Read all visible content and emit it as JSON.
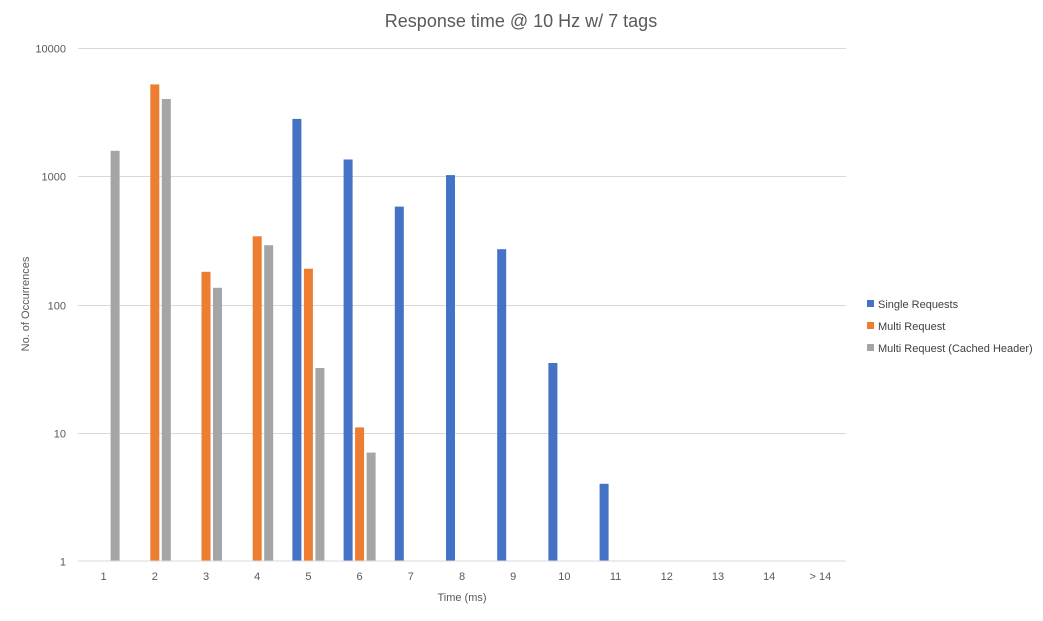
{
  "chart_data": {
    "type": "bar",
    "title": "Response time @ 10 Hz w/ 7 tags",
    "xlabel": "Time (ms)",
    "ylabel": "No. of Occurrences",
    "yscale": "log",
    "ylim": [
      1,
      10000
    ],
    "yticks": [
      "1",
      "10",
      "100",
      "1000",
      "10000"
    ],
    "categories": [
      "1",
      "2",
      "3",
      "4",
      "5",
      "6",
      "7",
      "8",
      "9",
      "10",
      "11",
      "12",
      "13",
      "14",
      "> 14"
    ],
    "grid": true,
    "legend_position": "right",
    "series": [
      {
        "name": "Single Requests",
        "color": "#4472C4",
        "values": [
          null,
          null,
          null,
          null,
          2800,
          1350,
          580,
          1020,
          270,
          35,
          4,
          null,
          null,
          null,
          null
        ]
      },
      {
        "name": "Multi Request",
        "color": "#ED7D31",
        "values": [
          null,
          5200,
          180,
          340,
          190,
          11,
          null,
          null,
          null,
          null,
          null,
          null,
          null,
          null,
          null
        ]
      },
      {
        "name": "Multi Request (Cached Header)",
        "color": "#A5A5A5",
        "values": [
          1580,
          4000,
          135,
          290,
          32,
          7,
          null,
          null,
          null,
          null,
          null,
          null,
          null,
          null,
          null
        ]
      }
    ]
  }
}
